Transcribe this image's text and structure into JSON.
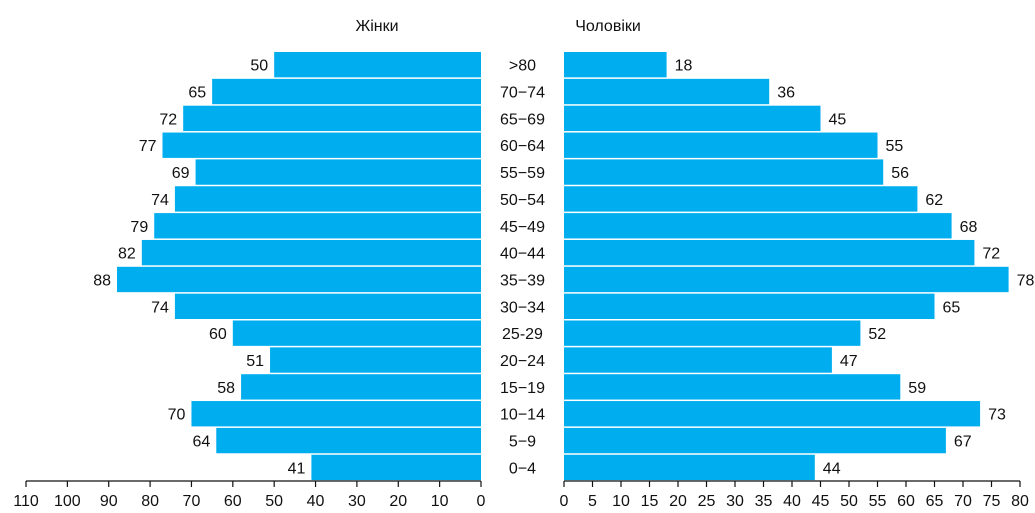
{
  "chart_data": {
    "type": "bar",
    "orientation": "horizontal",
    "bar_color": "#00aeef",
    "categories": [
      ">80",
      "70−74",
      "65−69",
      "60−64",
      "55−59",
      "50−54",
      "45−49",
      "40−44",
      "35−39",
      "30−34",
      "25-29",
      "20−24",
      "15−19",
      "10−14",
      "5−9",
      "0−4"
    ],
    "series": [
      {
        "name": "Жінки",
        "values": [
          50,
          65,
          72,
          77,
          69,
          74,
          79,
          82,
          88,
          74,
          60,
          51,
          58,
          70,
          64,
          41
        ],
        "xlim": [
          0,
          110
        ],
        "ticks": [
          110,
          100,
          90,
          80,
          70,
          60,
          50,
          40,
          30,
          20,
          10,
          0
        ]
      },
      {
        "name": "Чоловіки",
        "values": [
          18,
          36,
          45,
          55,
          56,
          62,
          68,
          72,
          78,
          65,
          52,
          47,
          59,
          73,
          67,
          44
        ],
        "xlim": [
          0,
          80
        ],
        "ticks": [
          0,
          5,
          10,
          15,
          20,
          25,
          30,
          35,
          40,
          45,
          50,
          55,
          60,
          65,
          70,
          75,
          80
        ]
      }
    ],
    "grid": false,
    "legend": "none"
  }
}
